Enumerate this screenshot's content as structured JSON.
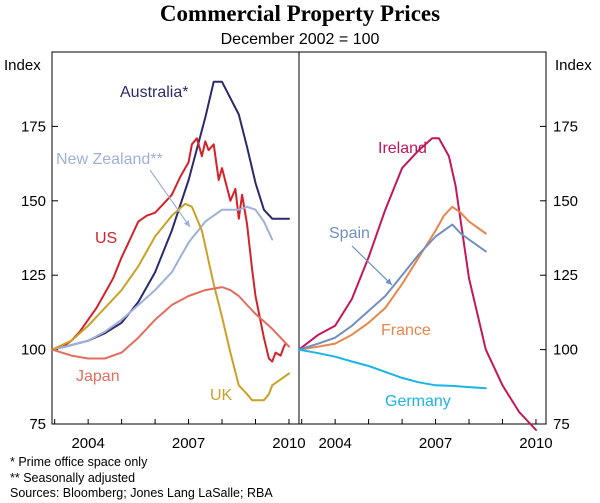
{
  "title": "Commercial Property Prices",
  "subtitle": "December 2002 = 100",
  "notes": [
    "*  Prime office space only",
    "** Seasonally adjusted",
    "Sources: Bloomberg; Jones Lang LaSalle; RBA"
  ],
  "chart_data": [
    {
      "type": "line",
      "ylabel": "Index",
      "ylim": [
        75,
        200
      ],
      "yticks": [
        75,
        100,
        125,
        150,
        175
      ],
      "xlim": [
        2002.92,
        2010.3
      ],
      "xticks": [
        2004,
        2007,
        2010
      ],
      "series": [
        {
          "name": "Australia*",
          "color": "#2b2a6b",
          "x": [
            2002.92,
            2003.5,
            2004,
            2004.5,
            2005,
            2005.5,
            2006,
            2006.5,
            2007,
            2007.5,
            2007.75,
            2008,
            2008.5,
            2008.75,
            2009,
            2009.25,
            2009.5,
            2009.75,
            2010
          ],
          "y": [
            100,
            101.5,
            103,
            105.5,
            109,
            116,
            126,
            140,
            157,
            178,
            190,
            190,
            179,
            168,
            156,
            147,
            144,
            144,
            144
          ]
        },
        {
          "name": "US",
          "color": "#d2232a",
          "x": [
            2002.92,
            2003.25,
            2003.5,
            2003.75,
            2004,
            2004.25,
            2004.5,
            2004.75,
            2005,
            2005.25,
            2005.5,
            2005.75,
            2006,
            2006.25,
            2006.5,
            2006.75,
            2007,
            2007.1,
            2007.25,
            2007.4,
            2007.5,
            2007.6,
            2007.75,
            2007.9,
            2008,
            2008.25,
            2008.4,
            2008.5,
            2008.6,
            2008.75,
            2008.9,
            2009,
            2009.25,
            2009.4,
            2009.5,
            2009.6,
            2009.75,
            2009.85,
            2009.9
          ],
          "y": [
            100,
            101,
            103,
            106,
            110,
            114,
            119,
            124,
            131,
            137,
            143,
            145,
            146,
            149,
            152,
            158,
            163,
            169,
            171,
            165,
            170,
            167,
            169,
            157,
            161,
            150,
            154,
            144,
            152,
            142,
            127,
            118,
            104,
            97,
            96,
            99,
            98,
            101,
            102
          ]
        },
        {
          "name": "New Zealand**",
          "color": "#9fb0d8",
          "x": [
            2002.92,
            2003.5,
            2004,
            2004.5,
            2005,
            2005.5,
            2006,
            2006.5,
            2007,
            2007.5,
            2008,
            2008.5,
            2008.75,
            2009,
            2009.25,
            2009.5
          ],
          "y": [
            100,
            101.5,
            103,
            106,
            110,
            115,
            120,
            126,
            136,
            143,
            147,
            147,
            148,
            147,
            143,
            137
          ]
        },
        {
          "name": "UK",
          "color": "#c9a227",
          "x": [
            2002.92,
            2003.5,
            2004,
            2004.5,
            2005,
            2005.5,
            2006,
            2006.5,
            2006.9,
            2007.1,
            2007.4,
            2007.75,
            2008,
            2008.25,
            2008.5,
            2008.75,
            2008.9,
            2009,
            2009.25,
            2009.4,
            2009.5,
            2009.75,
            2010
          ],
          "y": [
            100,
            103,
            108,
            114,
            120,
            128,
            138,
            145,
            149,
            148,
            140,
            122,
            111,
            99,
            88,
            85,
            83,
            83,
            83,
            85,
            88,
            90,
            92
          ]
        },
        {
          "name": "Japan",
          "color": "#e46d5e",
          "x": [
            2002.92,
            2003.5,
            2004,
            2004.5,
            2005,
            2005.5,
            2006,
            2006.5,
            2007,
            2007.5,
            2008,
            2008.25,
            2008.5,
            2008.75,
            2009,
            2009.5,
            2010
          ],
          "y": [
            100,
            98,
            97,
            97,
            99,
            104,
            110,
            115,
            118,
            120,
            121,
            120,
            118,
            115,
            112,
            107,
            101
          ]
        },
        {
          "name": "Ireland",
          "color": "#c2185b",
          "x": [
            2002.92,
            2003.5,
            2004,
            2004.5,
            2005,
            2005.5,
            2006,
            2006.5,
            2006.9,
            2007.1,
            2007.4,
            2007.6,
            2008,
            2008.5,
            2009,
            2009.5,
            2009.75,
            2010
          ],
          "y": [
            100,
            105,
            108,
            117,
            131,
            147,
            161,
            167,
            171,
            171,
            165,
            155,
            124,
            100,
            88,
            79,
            76,
            73
          ]
        },
        {
          "name": "France",
          "color": "#e8864b",
          "x": [
            2002.92,
            2003.5,
            2004,
            2004.5,
            2005,
            2005.5,
            2006,
            2006.5,
            2007,
            2007.25,
            2007.5,
            2007.75,
            2008,
            2008.5
          ],
          "y": [
            100,
            101,
            102,
            105,
            109,
            114,
            122,
            131,
            140,
            145,
            148,
            146,
            143,
            139
          ]
        },
        {
          "name": "Spain",
          "color": "#6f8fc2",
          "x": [
            2002.92,
            2003.5,
            2004,
            2004.5,
            2005,
            2005.5,
            2006,
            2006.5,
            2007,
            2007.25,
            2007.5,
            2007.75,
            2008,
            2008.5
          ],
          "y": [
            100,
            102,
            104,
            108,
            113,
            118,
            125,
            132,
            138,
            140,
            142,
            139,
            137,
            133
          ]
        },
        {
          "name": "Germany",
          "color": "#1ab4e6",
          "x": [
            2002.92,
            2003.5,
            2004,
            2004.5,
            2005,
            2005.5,
            2006,
            2006.5,
            2007,
            2007.5,
            2008,
            2008.5
          ],
          "y": [
            100,
            98.8,
            97.6,
            96,
            94.5,
            92.5,
            90.5,
            89,
            88,
            87.8,
            87.4,
            87
          ]
        }
      ],
      "panels": [
        {
          "id": "left",
          "series": [
            "Australia*",
            "US",
            "New Zealand**",
            "UK",
            "Japan"
          ]
        },
        {
          "id": "right",
          "series": [
            "Ireland",
            "France",
            "Spain",
            "Germany"
          ]
        }
      ]
    }
  ],
  "labels": {
    "index_left": "Index",
    "index_right": "Index",
    "australia": "Australia*",
    "new_zealand": "New Zealand**",
    "us": "US",
    "japan": "Japan",
    "uk": "UK",
    "ireland": "Ireland",
    "spain": "Spain",
    "france": "France",
    "germany": "Germany"
  },
  "colors": {
    "australia": "#2b2a6b",
    "new_zealand": "#9fb0d8",
    "us": "#d2232a",
    "japan": "#e46d5e",
    "uk": "#c9a227",
    "ireland": "#c2185b",
    "spain": "#6f8fc2",
    "france": "#e8864b",
    "germany": "#1ab4e6"
  }
}
